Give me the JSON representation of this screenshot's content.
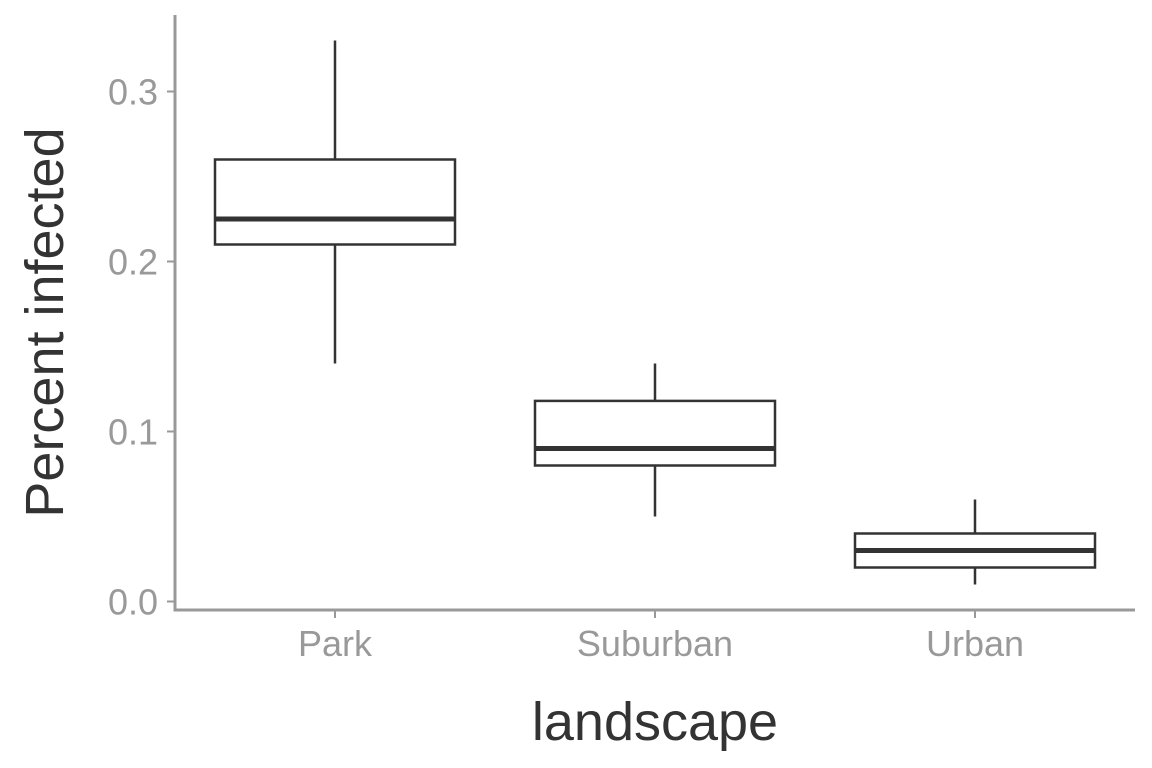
{
  "chart_data": {
    "type": "boxplot",
    "title": "",
    "xlabel": "landscape",
    "ylabel": "Percent infected",
    "ylim": [
      -0.005,
      0.345
    ],
    "yticks": [
      0.0,
      0.1,
      0.2,
      0.3
    ],
    "ytick_labels": [
      "0.0",
      "0.1",
      "0.2",
      "0.3"
    ],
    "categories": [
      "Park",
      "Suburban",
      "Urban"
    ],
    "boxes": [
      {
        "category": "Park",
        "min": 0.14,
        "q1": 0.21,
        "median": 0.225,
        "q3": 0.26,
        "max": 0.33
      },
      {
        "category": "Suburban",
        "min": 0.05,
        "q1": 0.08,
        "median": 0.09,
        "q3": 0.118,
        "max": 0.14
      },
      {
        "category": "Urban",
        "min": 0.01,
        "q1": 0.02,
        "median": 0.03,
        "q3": 0.04,
        "max": 0.06
      }
    ],
    "grid": false,
    "legend": "none",
    "colors": {
      "box_line": "#333333",
      "axis_line": "#999999",
      "tick_text": "#999999",
      "title_text": "#333333",
      "box_fill": "#ffffff"
    }
  }
}
